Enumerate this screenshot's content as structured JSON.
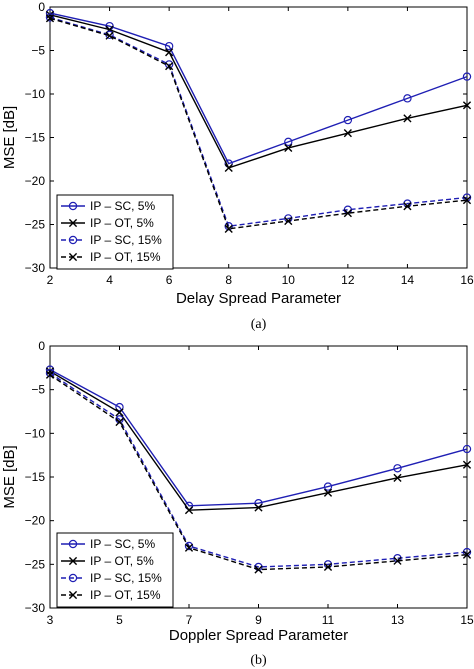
{
  "chart_data": [
    {
      "type": "line",
      "caption": "(a)",
      "xlabel": "Delay Spread Parameter",
      "ylabel": "MSE [dB]",
      "xlim": [
        2,
        16
      ],
      "ylim": [
        -30,
        0
      ],
      "xticks": [
        2,
        4,
        6,
        8,
        10,
        12,
        14,
        16
      ],
      "yticks": [
        0,
        -5,
        -10,
        -15,
        -20,
        -25,
        -30
      ],
      "grid": false,
      "legend_position": "bottom-left",
      "x": [
        2,
        4,
        6,
        8,
        10,
        12,
        14,
        16
      ],
      "series": [
        {
          "name": "IP – SC, 5%",
          "color": "#1f1fb4",
          "marker": "o",
          "dash": "solid",
          "values": [
            -0.7,
            -2.2,
            -4.5,
            -18.0,
            -15.5,
            -13.0,
            -10.5,
            -8.0
          ]
        },
        {
          "name": "IP – OT, 5%",
          "color": "#000000",
          "marker": "x",
          "dash": "solid",
          "values": [
            -0.9,
            -2.6,
            -5.2,
            -18.5,
            -16.2,
            -14.5,
            -12.8,
            -11.3
          ]
        },
        {
          "name": "IP – SC, 15%",
          "color": "#1f1fb4",
          "marker": "o",
          "dash": "dashed",
          "values": [
            -1.2,
            -3.2,
            -6.6,
            -25.2,
            -24.3,
            -23.3,
            -22.6,
            -21.9
          ]
        },
        {
          "name": "IP – OT, 15%",
          "color": "#000000",
          "marker": "x",
          "dash": "dashed",
          "values": [
            -1.3,
            -3.3,
            -6.8,
            -25.5,
            -24.6,
            -23.7,
            -22.9,
            -22.2
          ]
        }
      ]
    },
    {
      "type": "line",
      "caption": "(b)",
      "xlabel": "Doppler Spread Parameter",
      "ylabel": "MSE [dB]",
      "xlim": [
        3,
        15
      ],
      "ylim": [
        -30,
        0
      ],
      "xticks": [
        3,
        5,
        7,
        9,
        11,
        13,
        15
      ],
      "yticks": [
        0,
        -5,
        -10,
        -15,
        -20,
        -25,
        -30
      ],
      "grid": false,
      "legend_position": "bottom-left",
      "x": [
        3,
        5,
        7,
        9,
        11,
        13,
        15
      ],
      "series": [
        {
          "name": "IP – SC, 5%",
          "color": "#1f1fb4",
          "marker": "o",
          "dash": "solid",
          "values": [
            -2.7,
            -7.0,
            -18.3,
            -18.0,
            -16.1,
            -14.0,
            -11.8
          ]
        },
        {
          "name": "IP – OT, 5%",
          "color": "#000000",
          "marker": "x",
          "dash": "solid",
          "values": [
            -2.9,
            -7.6,
            -18.8,
            -18.5,
            -16.8,
            -15.1,
            -13.6
          ]
        },
        {
          "name": "IP – SC, 15%",
          "color": "#1f1fb4",
          "marker": "o",
          "dash": "dashed",
          "values": [
            -3.1,
            -8.4,
            -22.9,
            -25.3,
            -25.0,
            -24.3,
            -23.6
          ]
        },
        {
          "name": "IP – OT, 15%",
          "color": "#000000",
          "marker": "x",
          "dash": "dashed",
          "values": [
            -3.3,
            -8.7,
            -23.1,
            -25.6,
            -25.3,
            -24.6,
            -23.9
          ]
        }
      ]
    }
  ]
}
